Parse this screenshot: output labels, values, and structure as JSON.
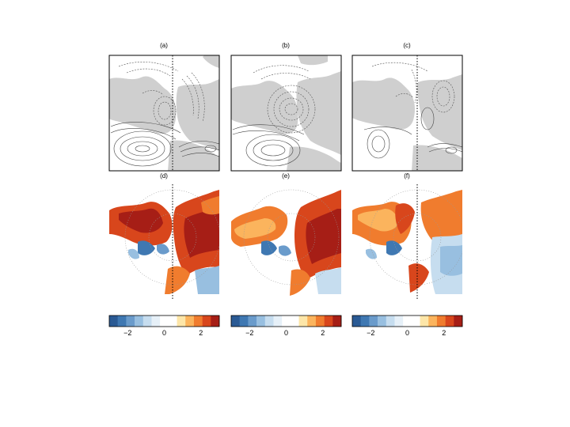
{
  "chart_data": [
    {
      "type": "heatmap",
      "panel_label": "(a)",
      "style": "contour",
      "land_fill": "#cfcfcf"
    },
    {
      "type": "heatmap",
      "panel_label": "(b)",
      "style": "contour",
      "land_fill": "#cfcfcf"
    },
    {
      "type": "heatmap",
      "panel_label": "(c)",
      "style": "contour",
      "land_fill": "#cfcfcf"
    },
    {
      "type": "heatmap",
      "panel_label": "(d)",
      "style": "shaded"
    },
    {
      "type": "heatmap",
      "panel_label": "(e)",
      "style": "shaded"
    },
    {
      "type": "heatmap",
      "panel_label": "(f)",
      "style": "shaded"
    }
  ],
  "colorbars": [
    {
      "range": [
        -3,
        3
      ],
      "ticks": [
        "−2",
        "0",
        "2"
      ],
      "tick_values": [
        -2,
        0,
        2
      ]
    },
    {
      "range": [
        -3,
        3
      ],
      "ticks": [
        "−2",
        "0",
        "2"
      ],
      "tick_values": [
        -2,
        0,
        2
      ]
    },
    {
      "range": [
        -3,
        3
      ],
      "ticks": [
        "−2",
        "0",
        "2"
      ],
      "tick_values": [
        -2,
        0,
        2
      ]
    }
  ],
  "colors": {
    "scale": [
      "#2a5a94",
      "#3f78b2",
      "#6a9bcb",
      "#98bfe0",
      "#c6ddef",
      "#e6f0f8",
      "#ffffff",
      "#ffffff",
      "#fde6a8",
      "#fbb45d",
      "#f07c2e",
      "#d8461c",
      "#a61e16"
    ],
    "land": "#cfcfcf"
  }
}
